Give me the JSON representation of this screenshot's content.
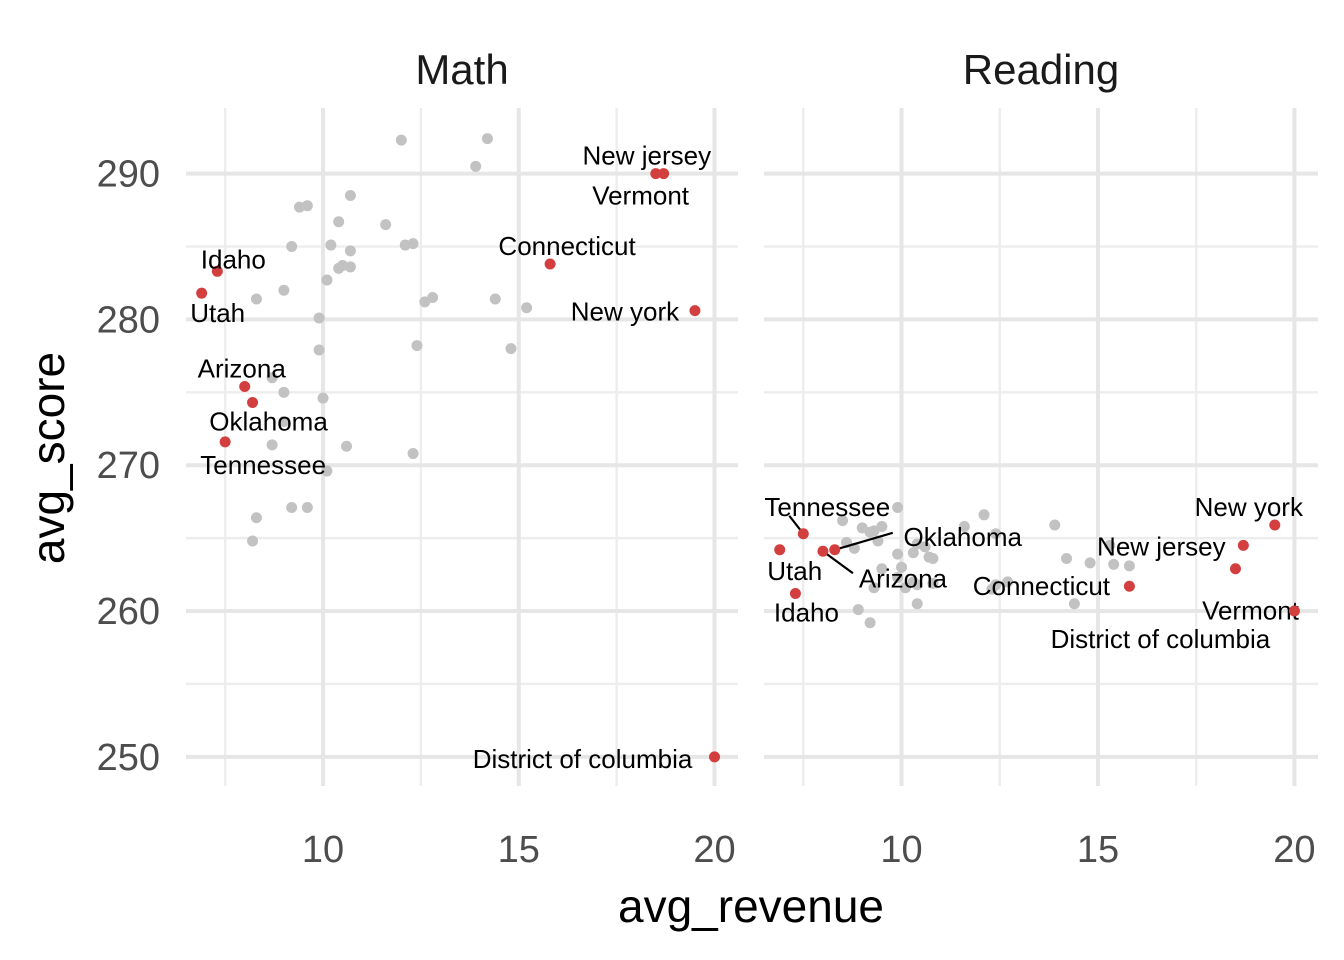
{
  "chart_data": {
    "type": "scatter",
    "xlabel": "avg_revenue",
    "ylabel": "avg_score",
    "xlim": [
      6.5,
      20.6
    ],
    "ylim": [
      248.0,
      294.5
    ],
    "x_ticks": [
      10,
      15,
      20
    ],
    "y_ticks": [
      250,
      260,
      270,
      280,
      290
    ],
    "grid": true,
    "colors": {
      "background": "#ffffff",
      "highlight": "#d33f3f",
      "other": "#c2c2c2"
    },
    "panels": [
      {
        "name": "Math",
        "highlighted": [
          {
            "state": "New jersey",
            "x": 18.5,
            "y": 290.0
          },
          {
            "state": "Vermont",
            "x": 18.7,
            "y": 290.0
          },
          {
            "state": "Connecticut",
            "x": 15.8,
            "y": 283.8
          },
          {
            "state": "New york",
            "x": 19.5,
            "y": 280.6
          },
          {
            "state": "Idaho",
            "x": 7.3,
            "y": 283.3
          },
          {
            "state": "Utah",
            "x": 6.9,
            "y": 281.8
          },
          {
            "state": "Arizona",
            "x": 8.0,
            "y": 275.4
          },
          {
            "state": "Oklahoma",
            "x": 8.2,
            "y": 274.3
          },
          {
            "state": "Tennessee",
            "x": 7.5,
            "y": 271.6
          },
          {
            "state": "District of columbia",
            "x": 20.0,
            "y": 250.0
          }
        ],
        "others": [
          [
            12.0,
            292.3
          ],
          [
            14.2,
            292.4
          ],
          [
            13.9,
            290.5
          ],
          [
            10.7,
            288.5
          ],
          [
            9.4,
            287.7
          ],
          [
            9.6,
            287.8
          ],
          [
            10.4,
            286.7
          ],
          [
            11.6,
            286.5
          ],
          [
            9.2,
            285.0
          ],
          [
            10.2,
            285.1
          ],
          [
            12.1,
            285.1
          ],
          [
            12.3,
            285.2
          ],
          [
            10.7,
            284.7
          ],
          [
            10.5,
            283.7
          ],
          [
            10.4,
            283.5
          ],
          [
            10.7,
            283.6
          ],
          [
            10.1,
            282.7
          ],
          [
            9.0,
            282.0
          ],
          [
            8.3,
            281.4
          ],
          [
            12.6,
            281.2
          ],
          [
            12.8,
            281.5
          ],
          [
            14.4,
            281.4
          ],
          [
            15.2,
            280.8
          ],
          [
            9.9,
            280.1
          ],
          [
            12.4,
            278.2
          ],
          [
            14.8,
            278.0
          ],
          [
            9.9,
            277.9
          ],
          [
            8.7,
            276.0
          ],
          [
            9.0,
            275.0
          ],
          [
            10.0,
            274.6
          ],
          [
            9.0,
            273.0
          ],
          [
            8.7,
            271.4
          ],
          [
            10.6,
            271.3
          ],
          [
            12.3,
            270.8
          ],
          [
            10.1,
            269.6
          ],
          [
            8.3,
            266.4
          ],
          [
            9.2,
            267.1
          ],
          [
            9.6,
            267.1
          ],
          [
            8.2,
            264.8
          ]
        ]
      },
      {
        "name": "Reading",
        "highlighted": [
          {
            "state": "New york",
            "x": 19.5,
            "y": 265.9
          },
          {
            "state": "New jersey",
            "x": 18.7,
            "y": 264.5
          },
          {
            "state": "Vermont",
            "x": 18.5,
            "y": 262.9
          },
          {
            "state": "Connecticut",
            "x": 15.8,
            "y": 261.7
          },
          {
            "state": "District of columbia",
            "x": 20.0,
            "y": 260.0
          },
          {
            "state": "Tennessee",
            "x": 7.5,
            "y": 265.3
          },
          {
            "state": "Utah",
            "x": 6.9,
            "y": 264.2
          },
          {
            "state": "Oklahoma",
            "x": 8.3,
            "y": 264.2
          },
          {
            "state": "Arizona",
            "x": 8.0,
            "y": 264.1
          },
          {
            "state": "Idaho",
            "x": 7.3,
            "y": 261.2
          }
        ],
        "others": [
          [
            9.9,
            267.1
          ],
          [
            12.1,
            266.6
          ],
          [
            8.5,
            266.2
          ],
          [
            11.6,
            265.8
          ],
          [
            13.9,
            265.9
          ],
          [
            9.3,
            265.5
          ],
          [
            9.5,
            265.8
          ],
          [
            9.0,
            265.7
          ],
          [
            9.2,
            265.4
          ],
          [
            12.4,
            265.3
          ],
          [
            9.4,
            264.8
          ],
          [
            10.4,
            264.6
          ],
          [
            8.6,
            264.7
          ],
          [
            15.3,
            264.5
          ],
          [
            8.8,
            264.3
          ],
          [
            10.6,
            264.4
          ],
          [
            10.3,
            264.0
          ],
          [
            9.9,
            263.9
          ],
          [
            10.8,
            263.6
          ],
          [
            10.7,
            263.7
          ],
          [
            14.2,
            263.6
          ],
          [
            14.8,
            263.3
          ],
          [
            15.4,
            263.2
          ],
          [
            15.8,
            263.1
          ],
          [
            10.0,
            263.0
          ],
          [
            9.5,
            262.9
          ],
          [
            9.9,
            262.3
          ],
          [
            10.3,
            262.0
          ],
          [
            10.8,
            261.9
          ],
          [
            10.4,
            261.8
          ],
          [
            10.1,
            261.6
          ],
          [
            9.3,
            261.6
          ],
          [
            12.7,
            262.0
          ],
          [
            12.4,
            261.8
          ],
          [
            12.3,
            261.5
          ],
          [
            14.4,
            260.5
          ],
          [
            10.4,
            260.5
          ],
          [
            8.9,
            260.1
          ],
          [
            9.2,
            259.2
          ]
        ]
      }
    ]
  }
}
